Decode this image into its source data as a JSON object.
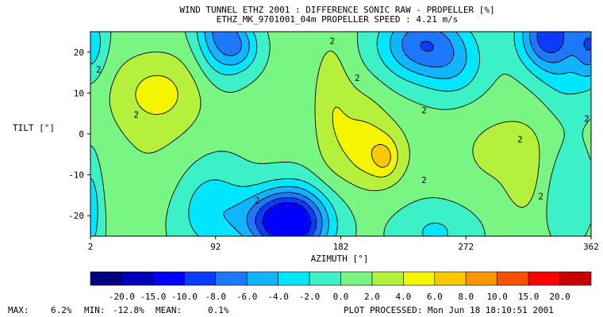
{
  "chart_data": {
    "type": "heatmap",
    "title": "WIND TUNNEL ETHZ 2001 : DIFFERENCE SONIC RAW - PROPELLER  [%]",
    "subtitle": "ETHZ_MK_9701001_04m PROPELLER SPEED :  4.21 m/s",
    "xlabel": "AZIMUTH [°]",
    "ylabel": "TILT [°]",
    "xlim": [
      2,
      362
    ],
    "ylim": [
      -25,
      25
    ],
    "x_ticks": [
      2,
      92,
      182,
      272,
      362
    ],
    "y_ticks": [
      20,
      10,
      0,
      -10,
      -20
    ],
    "colorbar_levels": [
      "-20.0",
      "-15.0",
      "-10.0",
      "-8.0",
      "-6.0",
      "-4.0",
      "-2.0",
      "0.0",
      "2.0",
      "4.0",
      "6.0",
      "8.0",
      "10.0",
      "15.0",
      "20.0"
    ],
    "colorbar_colors": [
      "#000080",
      "#0000bb",
      "#0000ff",
      "#0a3cff",
      "#1e78ff",
      "#10b4ff",
      "#00e6ff",
      "#3cf0c8",
      "#78f582",
      "#b4f03c",
      "#f5f500",
      "#fac800",
      "#fa9600",
      "#fa5000",
      "#ff0000",
      "#c80000"
    ],
    "contour_label": "2",
    "stats": {
      "max_label": "MAX:",
      "max": "6.2%",
      "min_label": "MIN:",
      "min": "-12.8%",
      "mean_label": "MEAN:",
      "mean": "0.1%"
    },
    "processed": "PLOT PROCESSED: Mon Jun 18 18:10:51 2001"
  }
}
